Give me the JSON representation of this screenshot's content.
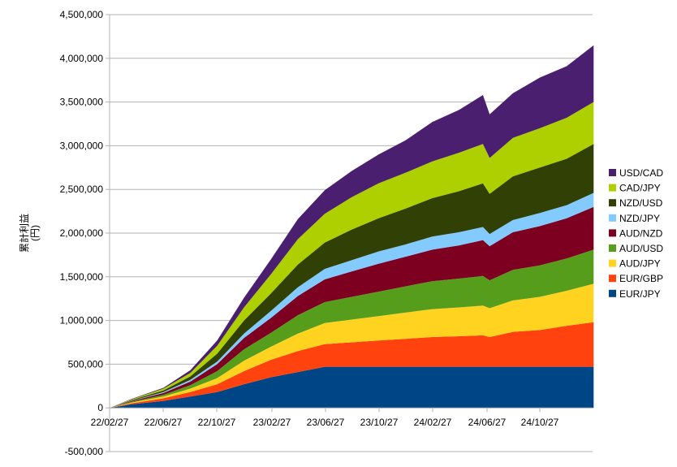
{
  "chart_data": {
    "type": "area",
    "stacked": true,
    "ylabel": "累計利益\n(円)",
    "ylim": [
      -500000,
      4500000
    ],
    "yticks": [
      -500000,
      0,
      500000,
      1000000,
      1500000,
      2000000,
      2500000,
      3000000,
      3500000,
      4000000,
      4500000
    ],
    "ytick_labels": [
      "-500,000",
      "0",
      "500,000",
      "1,000,000",
      "1,500,000",
      "2,000,000",
      "2,500,000",
      "3,000,000",
      "3,500,000",
      "4,000,000",
      "4,500,000"
    ],
    "xtick_labels": [
      "22/02/27",
      "22/06/27",
      "22/10/27",
      "23/02/27",
      "23/06/27",
      "23/10/27",
      "24/02/27",
      "24/06/27",
      "24/10/27"
    ],
    "grid": true,
    "legend_position": "right",
    "x_points": [
      "22/02/27",
      "22/04/15",
      "22/06/27",
      "22/08/27",
      "22/10/27",
      "22/12/27",
      "23/02/27",
      "23/04/27",
      "23/06/27",
      "23/08/27",
      "23/10/27",
      "23/12/27",
      "24/02/27",
      "24/04/27",
      "24/06/20",
      "24/07/05",
      "24/08/27",
      "24/10/27",
      "24/12/27",
      "25/02/27"
    ],
    "series": [
      {
        "name": "EUR/JPY",
        "color": "#004586",
        "values": [
          0,
          40000,
          80000,
          130000,
          180000,
          270000,
          350000,
          410000,
          470000,
          470000,
          470000,
          470000,
          470000,
          470000,
          470000,
          470000,
          470000,
          470000,
          470000,
          470000
        ]
      },
      {
        "name": "EUR/GBP",
        "color": "#FF420E",
        "values": [
          0,
          12000,
          30000,
          50000,
          90000,
          150000,
          200000,
          240000,
          260000,
          280000,
          300000,
          320000,
          340000,
          350000,
          360000,
          340000,
          400000,
          420000,
          470000,
          510000
        ]
      },
      {
        "name": "AUD/JPY",
        "color": "#FFD320",
        "values": [
          0,
          8000,
          20000,
          40000,
          70000,
          120000,
          150000,
          200000,
          240000,
          260000,
          280000,
          300000,
          320000,
          330000,
          340000,
          330000,
          360000,
          380000,
          400000,
          440000
        ]
      },
      {
        "name": "AUD/USD",
        "color": "#579D1C",
        "values": [
          0,
          8000,
          20000,
          40000,
          80000,
          130000,
          160000,
          210000,
          240000,
          260000,
          280000,
          300000,
          320000,
          330000,
          340000,
          320000,
          350000,
          360000,
          370000,
          390000
        ]
      },
      {
        "name": "AUD/NZD",
        "color": "#7E0021",
        "values": [
          0,
          8000,
          20000,
          40000,
          80000,
          130000,
          170000,
          220000,
          260000,
          290000,
          320000,
          340000,
          360000,
          380000,
          410000,
          390000,
          430000,
          450000,
          460000,
          490000
        ]
      },
      {
        "name": "NZD/JPY",
        "color": "#83CAFF",
        "values": [
          0,
          4000,
          10000,
          20000,
          30000,
          50000,
          80000,
          100000,
          120000,
          130000,
          140000,
          140000,
          150000,
          150000,
          150000,
          140000,
          140000,
          150000,
          150000,
          160000
        ]
      },
      {
        "name": "NZD/USD",
        "color": "#314004",
        "values": [
          0,
          8000,
          20000,
          40000,
          90000,
          150000,
          200000,
          260000,
          300000,
          350000,
          380000,
          410000,
          440000,
          470000,
          500000,
          460000,
          500000,
          520000,
          530000,
          560000
        ]
      },
      {
        "name": "CAD/JPY",
        "color": "#AECF00",
        "values": [
          0,
          8000,
          20000,
          40000,
          90000,
          150000,
          220000,
          290000,
          330000,
          370000,
          400000,
          410000,
          420000,
          440000,
          450000,
          410000,
          440000,
          450000,
          470000,
          480000
        ]
      },
      {
        "name": "USD/CAD",
        "color": "#4B1F6F",
        "values": [
          0,
          4000,
          10000,
          30000,
          60000,
          110000,
          170000,
          230000,
          270000,
          300000,
          330000,
          370000,
          450000,
          490000,
          560000,
          500000,
          510000,
          580000,
          590000,
          650000
        ]
      }
    ]
  }
}
